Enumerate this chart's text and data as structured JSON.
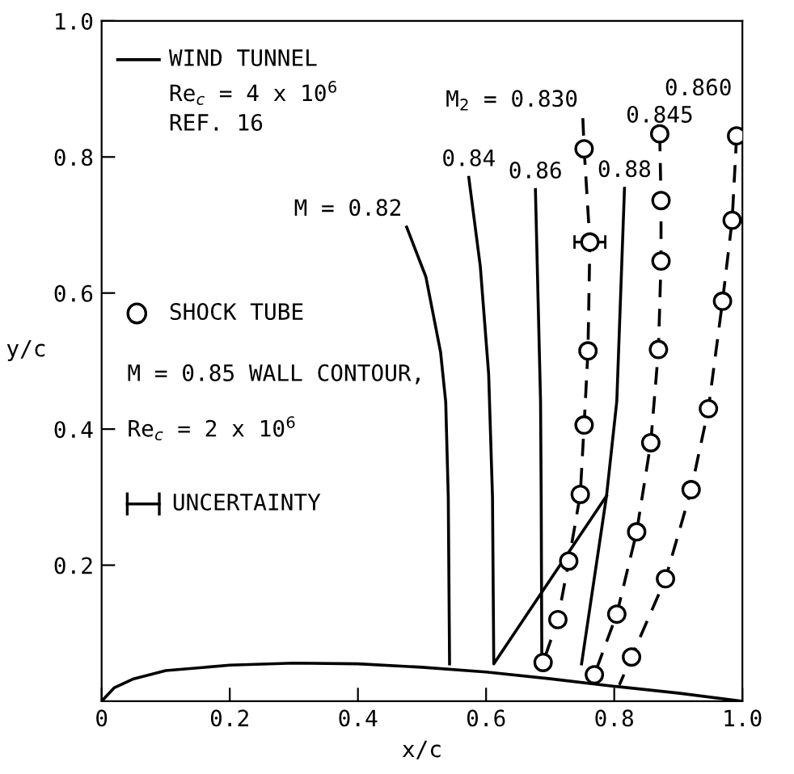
{
  "chart_data": {
    "type": "line",
    "xlabel": "x/c",
    "ylabel": "y/c",
    "xlim": [
      0,
      1.0
    ],
    "ylim": [
      0,
      1.0
    ],
    "xticks": [
      0,
      0.2,
      0.4,
      0.6,
      0.8,
      {
        "value": 1,
        "label": "1.0"
      }
    ],
    "yticks": [
      0.2,
      0.4,
      0.6,
      0.8,
      {
        "value": 1,
        "label": "1.0"
      }
    ],
    "grid": false,
    "annotations": [
      "WIND TUNNEL",
      "Re$_{c}$ = 4 x 10$^{6}$",
      "REF. 16",
      "SHOCK TUBE",
      "M = 0.85 WALL CONTOUR,",
      "Re$_{c}$ = 2 x 10$^{6}$",
      "UNCERTAINTY"
    ],
    "series": [
      {
        "line_style": "solid",
        "color": "#000000",
        "x": [
          0,
          0.02,
          0.05,
          0.1,
          0.2,
          0.3,
          0.4,
          0.5,
          0.6,
          0.7,
          0.8,
          0.9,
          1.0
        ],
        "values": [
          0,
          0.02,
          0.033,
          0.045,
          0.053,
          0.056,
          0.055,
          0.05,
          0.043,
          0.033,
          0.022,
          0.012,
          0
        ]
      },
      {
        "name": "M = 0.82",
        "line_style": "solid",
        "color": "#000000",
        "x": [
          0.476,
          0.506,
          0.529,
          0.537,
          0.541,
          0.543
        ],
        "values": [
          0.697,
          0.624,
          0.513,
          0.44,
          0.3,
          0.055
        ]
      },
      {
        "name": "0.84",
        "line_style": "solid",
        "color": "#000000",
        "x": [
          0.573,
          0.591,
          0.604,
          0.61,
          0.612,
          0.788
        ],
        "values": [
          0.77,
          0.639,
          0.481,
          0.3,
          0.055,
          0.302
        ]
      },
      {
        "name": "0.86",
        "line_style": "solid",
        "color": "#000000",
        "x": [
          0.677,
          0.685,
          0.686,
          0.687
        ],
        "values": [
          0.752,
          0.441,
          0.3,
          0.055
        ]
      },
      {
        "name": "0.88",
        "line_style": "solid",
        "color": "#000000",
        "x": [
          0.816,
          0.804,
          0.788,
          0.749
        ],
        "values": [
          0.754,
          0.441,
          0.302,
          0.055
        ]
      },
      {
        "name": "M$_{2}$ = 0.830",
        "line_style": "dashed",
        "color": "#000000",
        "x": [
          0.751,
          0.753,
          0.762,
          0.759,
          0.753,
          0.747,
          0.729,
          0.712,
          0.689
        ],
        "values": [
          0.857,
          0.812,
          0.675,
          0.515,
          0.406,
          0.304,
          0.206,
          0.12,
          0.057
        ]
      },
      {
        "name": "0.845",
        "line_style": "dashed",
        "color": "#000000",
        "x": [
          0.871,
          0.873,
          0.873,
          0.869,
          0.857,
          0.835,
          0.804,
          0.769
        ],
        "values": [
          0.834,
          0.736,
          0.647,
          0.517,
          0.38,
          0.249,
          0.128,
          0.039
        ]
      },
      {
        "name": "0.860",
        "line_style": "dashed",
        "color": "#000000",
        "x": [
          0.991,
          0.984,
          0.969,
          0.947,
          0.92,
          0.88,
          0.827,
          0.808
        ],
        "values": [
          0.831,
          0.707,
          0.588,
          0.43,
          0.311,
          0.18,
          0.065,
          0.024
        ]
      },
      {
        "type": "scatter",
        "marker": "circle",
        "color": "#000000",
        "x": [
          0.753,
          0.762,
          0.759,
          0.753,
          0.747,
          0.729,
          0.712,
          0.689
        ],
        "values": [
          0.812,
          0.675,
          0.515,
          0.406,
          0.304,
          0.206,
          0.12,
          0.057
        ],
        "xerrors": [
          null,
          0.024,
          null,
          null,
          null,
          null,
          null,
          null
        ]
      },
      {
        "type": "scatter",
        "marker": "circle",
        "color": "#000000",
        "x": [
          0.871,
          0.873,
          0.873,
          0.869,
          0.857,
          0.835,
          0.804,
          0.769
        ],
        "values": [
          0.834,
          0.736,
          0.647,
          0.517,
          0.38,
          0.249,
          0.128,
          0.039
        ]
      },
      {
        "type": "scatter",
        "marker": "circle",
        "color": "#000000",
        "x": [
          0.991,
          0.984,
          0.969,
          0.947,
          0.92,
          0.88,
          0.827
        ],
        "values": [
          0.831,
          0.707,
          0.588,
          0.43,
          0.311,
          0.18,
          0.065
        ]
      }
    ]
  }
}
